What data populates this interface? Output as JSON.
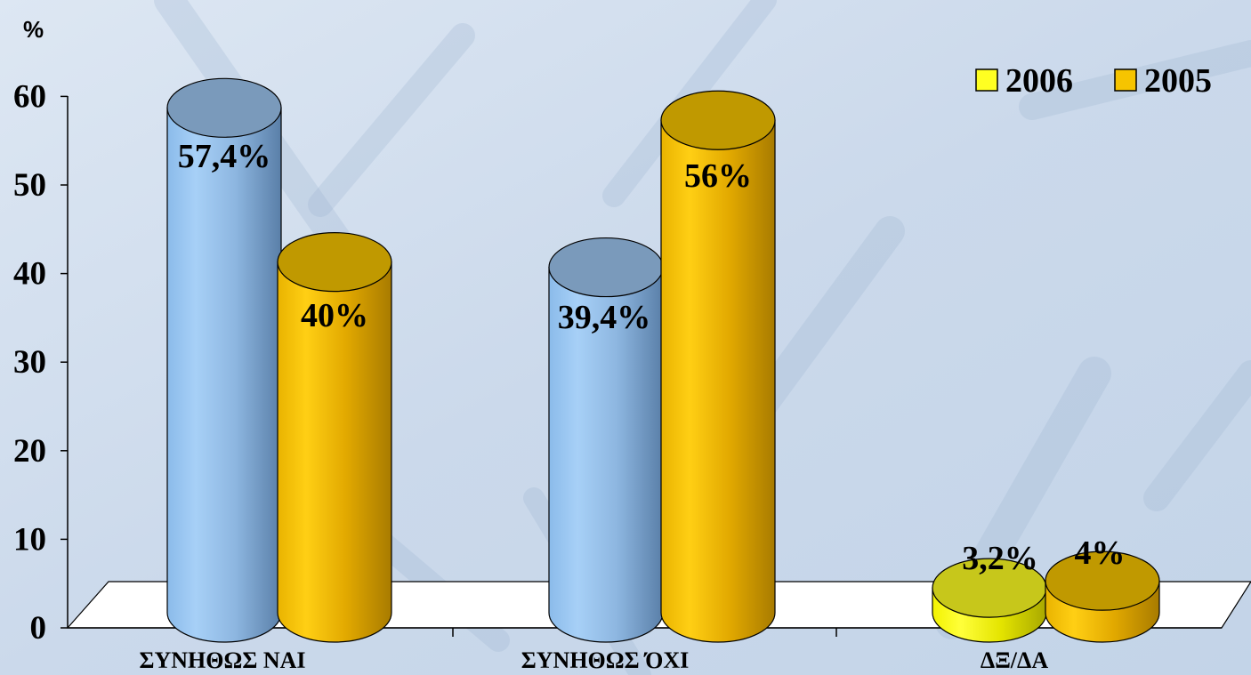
{
  "colors": {
    "background": "#cfdcec",
    "streak": "#9fb6d2",
    "blue_bar": "#9cc6f0",
    "gold_bar": "#f6c400",
    "yellow_bar": "#ffff22",
    "floor": "#ffffff"
  },
  "chart_data": {
    "type": "bar",
    "unit_label": "%",
    "categories": [
      "ΣΥΝΗΘΩΣ ΝΑΙ",
      "ΣΥΝΗΘΩΣ ΌΧΙ",
      "ΔΞ/ΔΑ"
    ],
    "series": [
      {
        "name": "2006",
        "values": [
          57.4,
          39.4,
          3.2
        ],
        "labels": [
          "57,4%",
          "39,4%",
          "3,2%"
        ]
      },
      {
        "name": "2005",
        "values": [
          40,
          56,
          4
        ],
        "labels": [
          "40%",
          "56%",
          "4%"
        ]
      }
    ],
    "bar_colors": [
      [
        "#9cc6f0",
        "#f6c400"
      ],
      [
        "#9cc6f0",
        "#f6c400"
      ],
      [
        "#ffff22",
        "#f6c400"
      ]
    ],
    "legend": {
      "placement": "top-right",
      "entries": [
        {
          "label": "2006",
          "color": "#ffff22"
        },
        {
          "label": "2005",
          "color": "#f6c400"
        }
      ]
    },
    "yticks": [
      0,
      10,
      20,
      30,
      40,
      50,
      60
    ],
    "ylim": [
      0,
      60
    ],
    "style": "3d-cylinder",
    "grid": false
  }
}
